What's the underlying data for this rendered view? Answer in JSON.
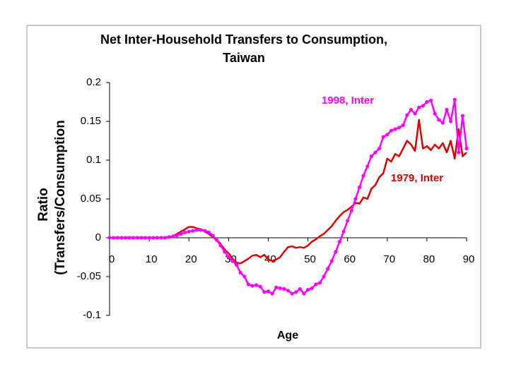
{
  "chart_data": {
    "type": "line",
    "title": [
      "Net Inter-Household Transfers to Consumption,",
      "Taiwan"
    ],
    "xlabel": "Age",
    "ylabel": [
      "Ratio",
      "(Transfers/Consumption"
    ],
    "x": [
      0,
      1,
      2,
      3,
      4,
      5,
      6,
      7,
      8,
      9,
      10,
      11,
      12,
      13,
      14,
      15,
      16,
      17,
      18,
      19,
      20,
      21,
      22,
      23,
      24,
      25,
      26,
      27,
      28,
      29,
      30,
      31,
      32,
      33,
      34,
      35,
      36,
      37,
      38,
      39,
      40,
      41,
      42,
      43,
      44,
      45,
      46,
      47,
      48,
      49,
      50,
      51,
      52,
      53,
      54,
      55,
      56,
      57,
      58,
      59,
      60,
      61,
      62,
      63,
      64,
      65,
      66,
      67,
      68,
      69,
      70,
      71,
      72,
      73,
      74,
      75,
      76,
      77,
      78,
      79,
      80,
      81,
      82,
      83,
      84,
      85,
      86,
      87,
      88,
      89,
      90
    ],
    "xlim": [
      0,
      90
    ],
    "xticks": [
      0,
      10,
      20,
      30,
      40,
      50,
      60,
      70,
      80,
      90
    ],
    "ylim": [
      -0.1,
      0.2
    ],
    "yticks": [
      0.2,
      0.15,
      0.1,
      0.05,
      0,
      -0.05,
      -0.1
    ],
    "grid": false,
    "series": [
      {
        "name": "1979, Inter",
        "color": "#e00000",
        "marker": false,
        "values": [
          0,
          0,
          0,
          0,
          0,
          0,
          0,
          0,
          0,
          0,
          0,
          0,
          0,
          0,
          0,
          0.001,
          0.002,
          0.005,
          0.008,
          0.011,
          0.014,
          0.014,
          0.012,
          0.011,
          0.008,
          0.005,
          0.001,
          -0.003,
          -0.008,
          -0.015,
          -0.02,
          -0.027,
          -0.032,
          -0.033,
          -0.03,
          -0.027,
          -0.023,
          -0.022,
          -0.025,
          -0.022,
          -0.028,
          -0.03,
          -0.028,
          -0.025,
          -0.018,
          -0.012,
          -0.011,
          -0.013,
          -0.012,
          -0.013,
          -0.01,
          -0.005,
          -0.002,
          0.002,
          0.005,
          0.01,
          0.015,
          0.022,
          0.028,
          0.033,
          0.036,
          0.04,
          0.045,
          0.044,
          0.052,
          0.05,
          0.063,
          0.068,
          0.078,
          0.083,
          0.102,
          0.098,
          0.108,
          0.105,
          0.115,
          0.125,
          0.12,
          0.112,
          0.152,
          0.115,
          0.118,
          0.113,
          0.12,
          0.115,
          0.122,
          0.11,
          0.125,
          0.102,
          0.14,
          0.105,
          0.11
        ]
      },
      {
        "name": "1998, Inter",
        "color": "#ff00ff",
        "marker": true,
        "values": [
          0,
          0,
          0,
          0,
          0,
          0,
          0,
          0,
          0,
          0,
          0,
          0,
          0,
          0,
          0,
          0.001,
          0.002,
          0.003,
          0.005,
          0.007,
          0.008,
          0.009,
          0.01,
          0.01,
          0.009,
          0.007,
          0.003,
          -0.003,
          -0.01,
          -0.018,
          -0.025,
          -0.03,
          -0.035,
          -0.045,
          -0.05,
          -0.06,
          -0.062,
          -0.061,
          -0.063,
          -0.07,
          -0.069,
          -0.072,
          -0.064,
          -0.065,
          -0.066,
          -0.068,
          -0.072,
          -0.07,
          -0.066,
          -0.072,
          -0.067,
          -0.065,
          -0.06,
          -0.058,
          -0.05,
          -0.04,
          -0.03,
          -0.018,
          -0.005,
          0.008,
          0.022,
          0.035,
          0.05,
          0.065,
          0.08,
          0.092,
          0.105,
          0.11,
          0.115,
          0.13,
          0.133,
          0.138,
          0.14,
          0.142,
          0.145,
          0.158,
          0.165,
          0.16,
          0.168,
          0.17,
          0.175,
          0.177,
          0.16,
          0.152,
          0.148,
          0.165,
          0.15,
          0.178,
          0.11,
          0.157,
          0.115
        ]
      }
    ]
  }
}
